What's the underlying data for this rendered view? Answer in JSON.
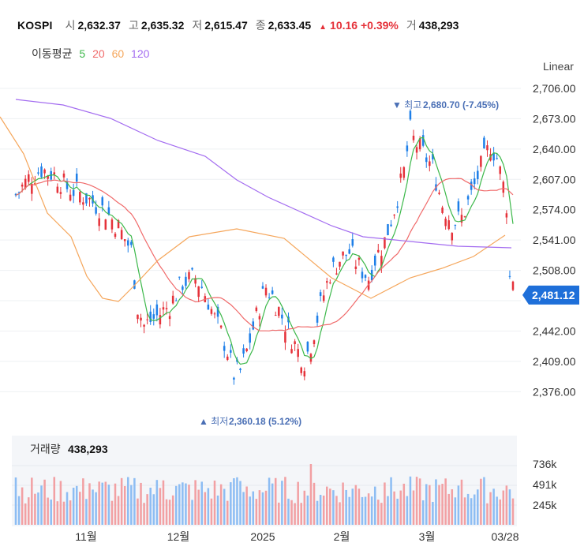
{
  "header": {
    "symbol": "KOSPI",
    "open_label": "시",
    "open": "2,632.37",
    "high_label": "고",
    "high": "2,635.32",
    "low_label": "저",
    "low": "2,615.47",
    "close_label": "종",
    "close": "2,633.45",
    "change": "10.16",
    "change_pct": "+0.39%",
    "volume_label": "거",
    "volume": "438,293"
  },
  "moving_avg": {
    "label": "이동평균",
    "items": [
      {
        "period": "5",
        "color": "#3cb84a"
      },
      {
        "period": "20",
        "color": "#f06a6a"
      },
      {
        "period": "60",
        "color": "#f5a65b"
      },
      {
        "period": "120",
        "color": "#a36cf0"
      }
    ]
  },
  "scale_mode": "Linear",
  "colors": {
    "up": "#e5323a",
    "down": "#1e7fe8",
    "vol_up": "#f2a0a3",
    "vol_down": "#8dbdf3",
    "badge": "#1e6fd9"
  },
  "chart_data": {
    "type": "candlestick",
    "price_axis": {
      "min": 2360,
      "max": 2706,
      "ticks": [
        "2,706.00",
        "2,673.00",
        "2,640.00",
        "2,607.00",
        "2,574.00",
        "2,541.00",
        "2,508.00",
        "2,442.00",
        "2,409.00",
        "2,376.00"
      ]
    },
    "x_labels": [
      "11월",
      "12월",
      "2025",
      "2월",
      "3월",
      "03/28"
    ],
    "last_price": "2,481.12",
    "high_marker": {
      "label": "최고",
      "value": "2,680.70 (-7.45%)"
    },
    "low_marker": {
      "label": "최저",
      "value": "2,360.18 (5.12%)"
    },
    "volume_panel": {
      "label": "거래량",
      "value": "438,293",
      "ticks": [
        "736k",
        "491k",
        "245k"
      ]
    },
    "series_ma": [
      "5",
      "20",
      "60",
      "120"
    ]
  }
}
